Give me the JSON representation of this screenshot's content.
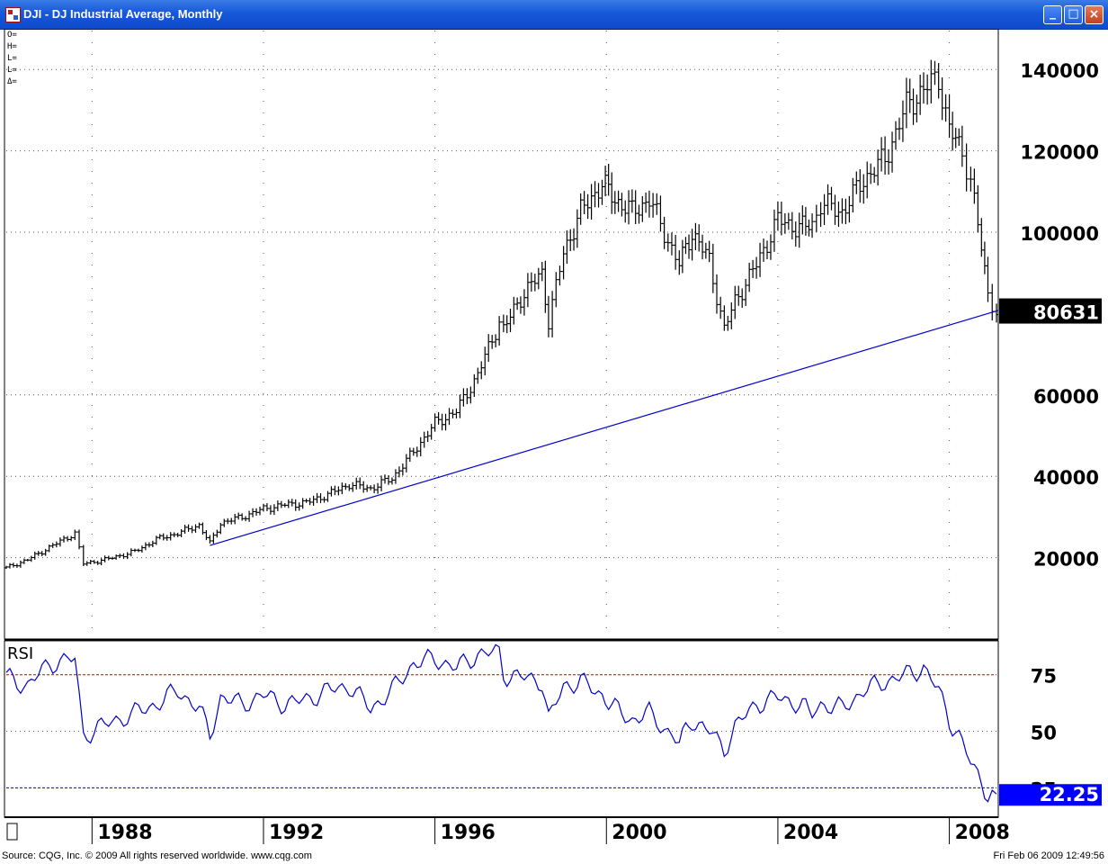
{
  "window": {
    "title": "DJI - DJ Industrial Average, Monthly",
    "buttons": {
      "minimize": "_",
      "maximize": "□",
      "close": "×"
    }
  },
  "status_bar": {
    "source": "Source: CQG, Inc. © 2009 All rights reserved worldwide. www.cqg.com",
    "timestamp": "Fri Feb 06 2009 12:49:56"
  },
  "colors": {
    "price_bars": "#000000",
    "trendline": "#0000cc",
    "rsi_line": "#0000cc",
    "rsi_upper": "#cc0000",
    "rsi_lower": "#0000cc",
    "last_price_bg": "#000000",
    "rsi_value_bg": "#0000ff"
  },
  "chart_data": [
    {
      "type": "ohlc",
      "ohlc_labels": [
        "O=",
        "H=",
        "L=",
        "L=",
        "Δ="
      ],
      "price_ticks": [
        "140000",
        "120000",
        "100000",
        "80631",
        "60000",
        "40000",
        "20000"
      ],
      "last_price": "80631",
      "ylim": [
        0,
        150000
      ],
      "x_ticks": [
        "1988",
        "1992",
        "1996",
        "2000",
        "2004",
        "2008"
      ],
      "x_range": [
        1986.0,
        2009.1
      ],
      "series": [
        {
          "x": [
            1986.0,
            1986.5,
            1987.0,
            1987.6,
            1987.8,
            1988.3,
            1989.0,
            1989.5,
            1990.0,
            1990.5,
            1990.75,
            1991.0,
            1991.5,
            1992.0,
            1992.5,
            1993.0,
            1993.5,
            1994.0,
            1994.5,
            1995.0,
            1995.5,
            1996.0,
            1996.5,
            1997.0,
            1997.5,
            1997.6,
            1998.0,
            1998.5,
            1998.65,
            1999.0,
            1999.4,
            1999.9,
            2000.2,
            2000.6,
            2001.0,
            2001.7,
            2002.0,
            2002.4,
            2002.75,
            2003.0,
            2003.5,
            2004.0,
            2004.5,
            2004.8,
            2005.0,
            2005.5,
            2006.0,
            2006.5,
            2007.0,
            2007.4,
            2007.75,
            2008.0,
            2008.3,
            2008.5,
            2008.75,
            2008.9,
            2009.1
          ],
          "close": [
            17500,
            19500,
            22500,
            26000,
            18500,
            19500,
            21500,
            24500,
            26000,
            28000,
            23500,
            28500,
            30000,
            32000,
            33000,
            33500,
            35500,
            38000,
            37000,
            39500,
            46000,
            53000,
            56000,
            65000,
            78000,
            76000,
            84000,
            90000,
            78000,
            95000,
            105000,
            112000,
            108000,
            105000,
            108000,
            92000,
            100000,
            93000,
            76000,
            83000,
            92000,
            103000,
            101000,
            102000,
            107000,
            105000,
            113000,
            118000,
            131000,
            135000,
            138000,
            125000,
            120000,
            113000,
            96000,
            85000,
            80631
          ]
        }
      ]
    },
    {
      "type": "line",
      "title": "RSI",
      "ylim": [
        12,
        90
      ],
      "y_ticks": [
        "75",
        "50",
        "25"
      ],
      "upper_level": 75,
      "lower_level": 25,
      "last_value": "22.25",
      "x_range": [
        1986.0,
        2009.1
      ],
      "series": [
        {
          "x": [
            1986.0,
            1986.5,
            1987.0,
            1987.6,
            1987.8,
            1988.3,
            1989.0,
            1989.5,
            1990.0,
            1990.5,
            1990.75,
            1991.0,
            1991.5,
            1992.0,
            1992.5,
            1993.0,
            1993.5,
            1994.0,
            1994.5,
            1995.0,
            1995.5,
            1996.0,
            1996.5,
            1997.0,
            1997.5,
            1997.6,
            1998.0,
            1998.5,
            1998.65,
            1999.0,
            1999.4,
            1999.9,
            2000.2,
            2000.6,
            2001.0,
            2001.7,
            2002.0,
            2002.4,
            2002.75,
            2003.0,
            2003.5,
            2004.0,
            2004.5,
            2004.8,
            2005.0,
            2005.5,
            2006.0,
            2006.5,
            2007.0,
            2007.4,
            2007.75,
            2008.0,
            2008.3,
            2008.5,
            2008.75,
            2008.9,
            2009.1
          ],
          "values": [
            74,
            70,
            80,
            82,
            48,
            53,
            58,
            62,
            68,
            60,
            48,
            65,
            62,
            66,
            62,
            64,
            68,
            70,
            60,
            68,
            80,
            82,
            78,
            84,
            85,
            75,
            74,
            72,
            55,
            70,
            72,
            66,
            60,
            55,
            58,
            45,
            55,
            50,
            42,
            52,
            62,
            65,
            62,
            58,
            62,
            60,
            68,
            72,
            75,
            78,
            68,
            55,
            45,
            36,
            28,
            22,
            22.25
          ]
        }
      ]
    }
  ]
}
